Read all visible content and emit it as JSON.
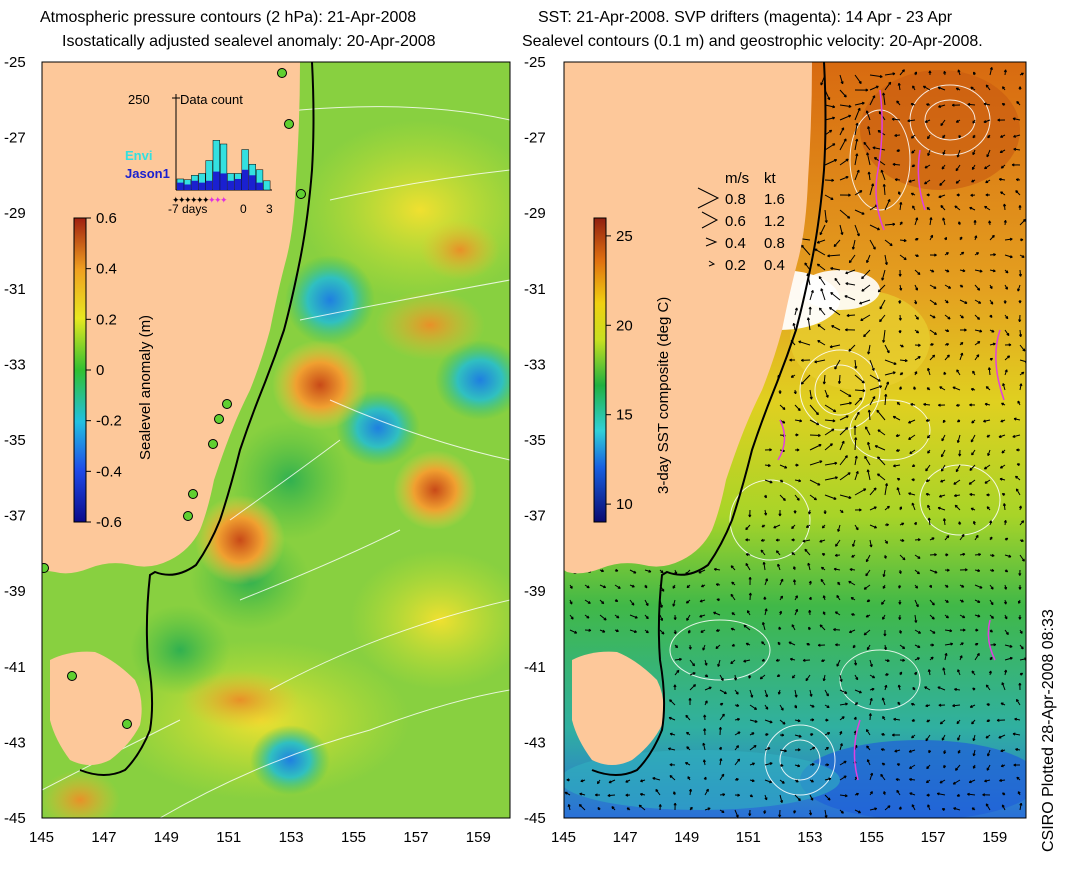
{
  "left_panel": {
    "title_line1": "Atmospheric pressure contours (2 hPa): 21-Apr-2008",
    "title_line2": "Isostatically adjusted sealevel anomaly: 20-Apr-2008",
    "colorbar": {
      "label": "Sealevel anomaly (m)",
      "ticks": [
        "0.6",
        "0.4",
        "0.2",
        "0",
        "-0.2",
        "-0.4",
        "-0.6"
      ],
      "range": [
        -0.6,
        0.6
      ]
    },
    "inset": {
      "title": "Data count",
      "y_label": "250",
      "x_ticks": [
        "-7",
        "days",
        "0",
        "3"
      ],
      "legend": [
        {
          "name": "Envi",
          "color": "#33e0e0"
        },
        {
          "name": "Jason1",
          "color": "#1a20d0"
        }
      ],
      "envi_counts": [
        30,
        28,
        40,
        45,
        80,
        135,
        125,
        45,
        45,
        110,
        70,
        55,
        25
      ],
      "jason_counts": [
        20,
        15,
        25,
        20,
        25,
        50,
        45,
        25,
        30,
        55,
        40,
        20,
        0
      ]
    }
  },
  "right_panel": {
    "title_line1": "SST: 21-Apr-2008. SVP drifters (magenta): 14 Apr - 23 Apr",
    "title_line2": "Sealevel contours (0.1 m) and geostrophic velocity: 20-Apr-2008.",
    "colorbar": {
      "label": "3-day SST composite (deg C)",
      "ticks": [
        "25",
        "20",
        "15",
        "10"
      ],
      "range": [
        9,
        26
      ]
    },
    "velocity_legend": {
      "header_ms": "m/s",
      "header_kt": "kt",
      "rows": [
        {
          "ms": "0.8",
          "kt": "1.6"
        },
        {
          "ms": "0.6",
          "kt": "1.2"
        },
        {
          "ms": "0.4",
          "kt": "0.8"
        },
        {
          "ms": "0.2",
          "kt": "0.4"
        }
      ]
    }
  },
  "axes": {
    "lat_ticks": [
      "-25",
      "-27",
      "-29",
      "-31",
      "-33",
      "-35",
      "-37",
      "-39",
      "-41",
      "-43",
      "-45"
    ],
    "lon_ticks": [
      "145",
      "147",
      "149",
      "151",
      "153",
      "155",
      "157",
      "159"
    ],
    "lat_range": [
      -45,
      -25
    ],
    "lon_range": [
      145,
      160
    ]
  },
  "credit": "CSIRO Plotted 28-Apr-2008 08:33",
  "colors": {
    "land": "#fdc89a",
    "sla_high": "#c0401a",
    "sla_low": "#1e6fe0",
    "sst_warm": "#d05a10",
    "sst_cool": "#1aa0c0"
  }
}
